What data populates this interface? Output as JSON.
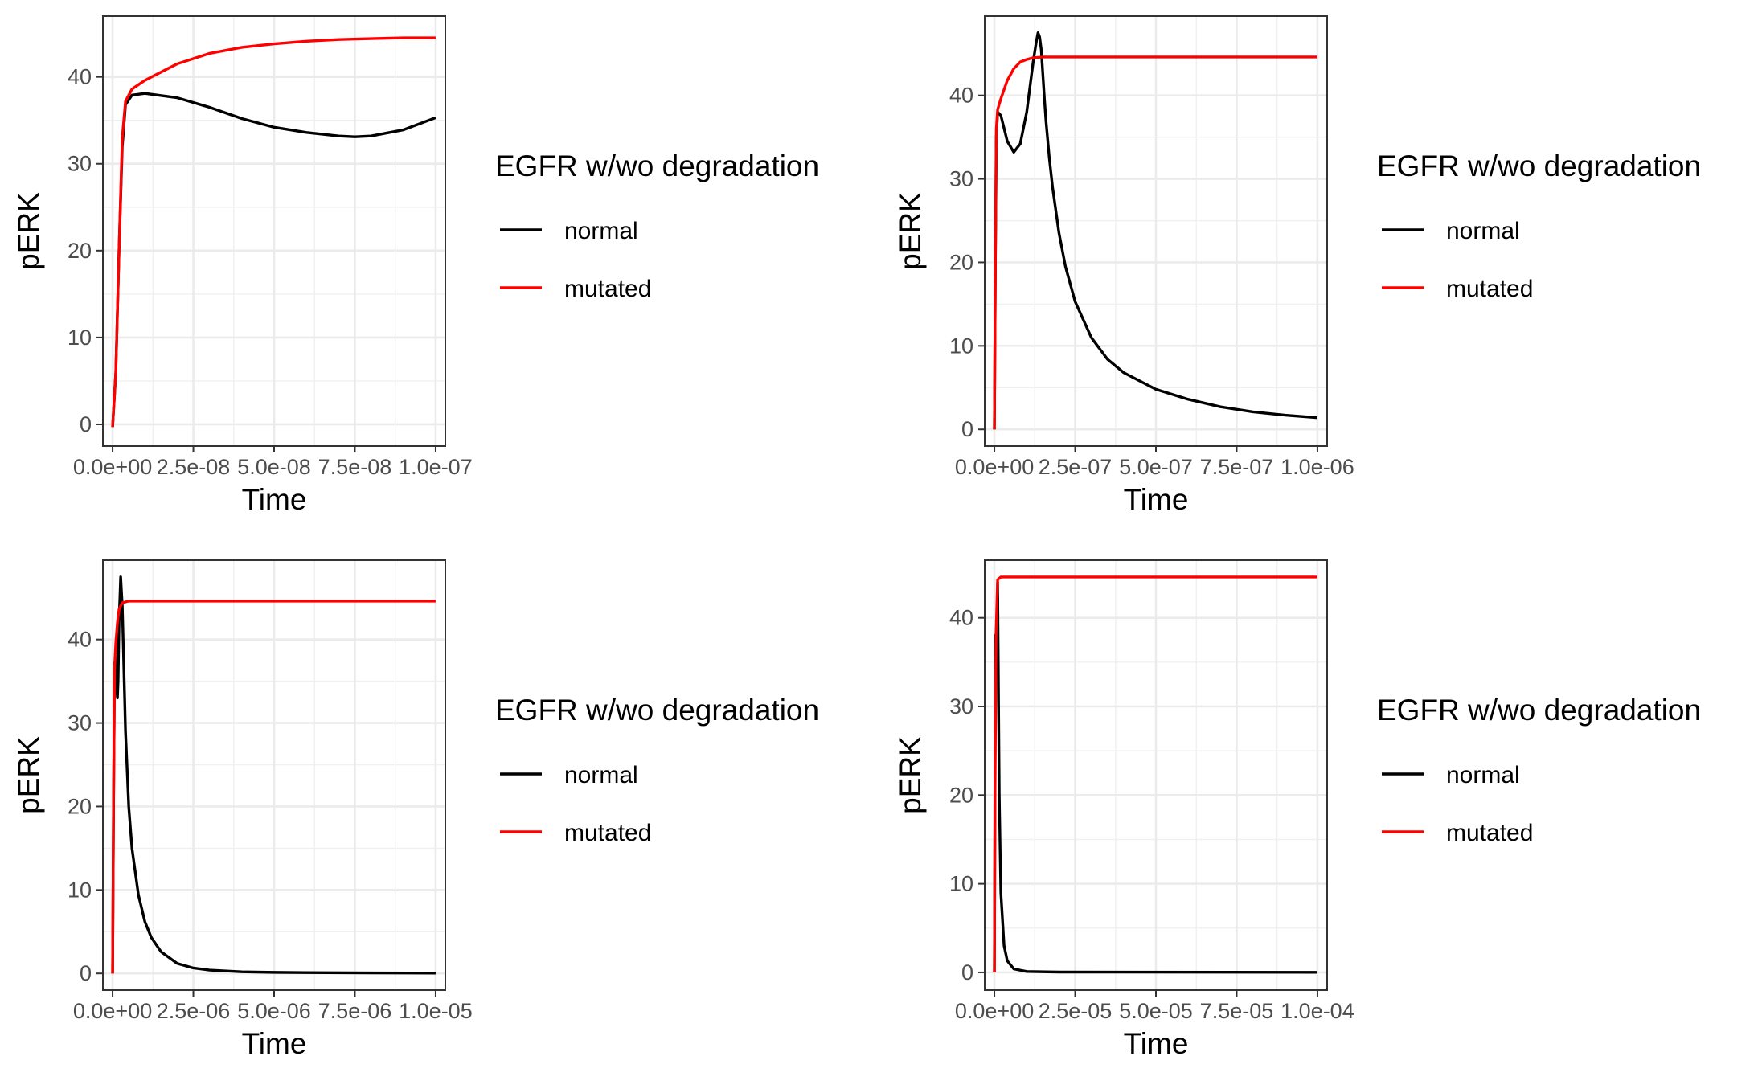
{
  "chart_data": [
    {
      "type": "line",
      "title": "",
      "xlabel": "Time",
      "ylabel": "pERK",
      "xlim": [
        -3e-09,
        1.03e-07
      ],
      "ylim": [
        -2.5,
        47
      ],
      "x_ticks": [
        0,
        2.5e-08,
        5e-08,
        7.5e-08,
        1e-07
      ],
      "x_tick_labels": [
        "0.0e+00",
        "2.5e-08",
        "5.0e-08",
        "7.5e-08",
        "1.0e-07"
      ],
      "y_ticks": [
        0,
        10,
        20,
        30,
        40
      ],
      "y_tick_labels": [
        "0",
        "10",
        "20",
        "30",
        "40"
      ],
      "legend": {
        "title": "EGFR w/wo degradation",
        "position": "right",
        "entries": [
          "normal",
          "mutated"
        ]
      },
      "series": [
        {
          "name": "normal",
          "color": "#000000",
          "x": [
            0,
            1e-09,
            2e-09,
            3e-09,
            4e-09,
            6e-09,
            1e-08,
            2e-08,
            3e-08,
            4e-08,
            5e-08,
            6e-08,
            7e-08,
            7.5e-08,
            8e-08,
            9e-08,
            1e-07
          ],
          "values": [
            -0.3,
            6,
            20,
            32,
            36.8,
            37.9,
            38.1,
            37.6,
            36.5,
            35.2,
            34.2,
            33.6,
            33.2,
            33.1,
            33.2,
            33.9,
            35.3
          ]
        },
        {
          "name": "mutated",
          "color": "#ff0000",
          "x": [
            0,
            1e-09,
            2e-09,
            3e-09,
            4e-09,
            6e-09,
            1e-08,
            2e-08,
            3e-08,
            4e-08,
            5e-08,
            6e-08,
            7e-08,
            8e-08,
            9e-08,
            1e-07
          ],
          "values": [
            -0.3,
            6,
            20,
            33,
            37.2,
            38.6,
            39.6,
            41.5,
            42.7,
            43.4,
            43.8,
            44.1,
            44.3,
            44.4,
            44.5,
            44.5
          ]
        }
      ]
    },
    {
      "type": "line",
      "title": "",
      "xlabel": "Time",
      "ylabel": "pERK",
      "xlim": [
        -3e-08,
        1.03e-06
      ],
      "ylim": [
        -2,
        49.5
      ],
      "x_ticks": [
        0,
        2.5e-07,
        5e-07,
        7.5e-07,
        1e-06
      ],
      "x_tick_labels": [
        "0.0e+00",
        "2.5e-07",
        "5.0e-07",
        "7.5e-07",
        "1.0e-06"
      ],
      "y_ticks": [
        0,
        10,
        20,
        30,
        40
      ],
      "y_tick_labels": [
        "0",
        "10",
        "20",
        "30",
        "40"
      ],
      "legend": {
        "title": "EGFR w/wo degradation",
        "position": "right",
        "entries": [
          "normal",
          "mutated"
        ]
      },
      "series": [
        {
          "name": "normal",
          "color": "#000000",
          "x": [
            0,
            3e-09,
            6e-09,
            1e-08,
            2e-08,
            4e-08,
            6e-08,
            8e-08,
            1e-07,
            1.1e-07,
            1.2e-07,
            1.3e-07,
            1.35e-07,
            1.4e-07,
            1.45e-07,
            1.5e-07,
            1.55e-07,
            1.6e-07,
            1.7e-07,
            1.8e-07,
            2e-07,
            2.2e-07,
            2.5e-07,
            3e-07,
            3.5e-07,
            4e-07,
            5e-07,
            6e-07,
            7e-07,
            8e-07,
            9e-07,
            1e-06
          ],
          "values": [
            0,
            20,
            35,
            38,
            37.6,
            34.5,
            33.2,
            34.2,
            38,
            41,
            44,
            46.5,
            47.5,
            47,
            45.5,
            42.5,
            39.5,
            36.8,
            32.5,
            29,
            23.5,
            19.5,
            15.3,
            11,
            8.4,
            6.8,
            4.8,
            3.6,
            2.7,
            2.1,
            1.7,
            1.4
          ]
        },
        {
          "name": "mutated",
          "color": "#ff0000",
          "x": [
            0,
            3e-09,
            6e-09,
            1e-08,
            2e-08,
            4e-08,
            6e-08,
            8e-08,
            1e-07,
            1.2e-07,
            1.5e-07,
            2e-07,
            3e-07,
            5e-07,
            1e-06
          ],
          "values": [
            0,
            21,
            36,
            38.3,
            39.6,
            41.8,
            43.2,
            44,
            44.3,
            44.5,
            44.6,
            44.6,
            44.6,
            44.6,
            44.6
          ]
        }
      ]
    },
    {
      "type": "line",
      "title": "",
      "xlabel": "Time",
      "ylabel": "pERK",
      "xlim": [
        -3e-07,
        1.03e-05
      ],
      "ylim": [
        -2,
        49.5
      ],
      "x_ticks": [
        0,
        2.5e-06,
        5e-06,
        7.5e-06,
        1e-05
      ],
      "x_tick_labels": [
        "0.0e+00",
        "2.5e-06",
        "5.0e-06",
        "7.5e-06",
        "1.0e-05"
      ],
      "y_ticks": [
        0,
        10,
        20,
        30,
        40
      ],
      "y_tick_labels": [
        "0",
        "10",
        "20",
        "30",
        "40"
      ],
      "legend": {
        "title": "EGFR w/wo degradation",
        "position": "right",
        "entries": [
          "normal",
          "mutated"
        ]
      },
      "series": [
        {
          "name": "normal",
          "color": "#000000",
          "x": [
            0,
            3e-08,
            6e-08,
            1e-07,
            1.3e-07,
            1.5e-07,
            1.7e-07,
            2e-07,
            2.5e-07,
            3e-07,
            4e-07,
            5e-07,
            6e-07,
            8e-07,
            1e-06,
            1.2e-06,
            1.5e-06,
            2e-06,
            2.5e-06,
            3e-06,
            4e-06,
            5e-06,
            6e-06,
            8e-06,
            1e-05
          ],
          "values": [
            0,
            20,
            37,
            38,
            34,
            33,
            35,
            42,
            47.5,
            44,
            29,
            20,
            15,
            9.4,
            6.2,
            4.3,
            2.6,
            1.2,
            0.65,
            0.4,
            0.2,
            0.13,
            0.1,
            0.06,
            0.04
          ]
        },
        {
          "name": "mutated",
          "color": "#ff0000",
          "x": [
            0,
            3e-08,
            6e-08,
            1e-07,
            1.5e-07,
            2e-07,
            3e-07,
            5e-07,
            1e-06,
            1e-05
          ],
          "values": [
            0,
            21,
            36.5,
            39.6,
            42,
            43.6,
            44.4,
            44.6,
            44.6,
            44.6
          ]
        }
      ]
    },
    {
      "type": "line",
      "title": "",
      "xlabel": "Time",
      "ylabel": "pERK",
      "xlim": [
        -3e-06,
        0.000103
      ],
      "ylim": [
        -2,
        46.5
      ],
      "x_ticks": [
        0,
        2.5e-05,
        5e-05,
        7.5e-05,
        0.0001
      ],
      "x_tick_labels": [
        "0.0e+00",
        "2.5e-05",
        "5.0e-05",
        "7.5e-05",
        "1.0e-04"
      ],
      "y_ticks": [
        0,
        10,
        20,
        30,
        40
      ],
      "y_tick_labels": [
        "0",
        "10",
        "20",
        "30",
        "40"
      ],
      "legend": {
        "title": "EGFR w/wo degradation",
        "position": "right",
        "entries": [
          "normal",
          "mutated"
        ]
      },
      "series": [
        {
          "name": "normal",
          "color": "#000000",
          "x": [
            0,
            3e-07,
            6e-07,
            1e-06,
            1.5e-06,
            2e-06,
            3e-06,
            4e-06,
            6e-06,
            1e-05,
            2e-05,
            0.0001
          ],
          "values": [
            0,
            38,
            34,
            44,
            20,
            9,
            3,
            1.3,
            0.4,
            0.1,
            0.04,
            0.01
          ]
        },
        {
          "name": "mutated",
          "color": "#ff0000",
          "x": [
            0,
            2e-07,
            5e-07,
            1e-06,
            2e-06,
            0.0001
          ],
          "values": [
            0,
            21,
            38,
            44.3,
            44.6,
            44.6
          ]
        }
      ]
    }
  ]
}
